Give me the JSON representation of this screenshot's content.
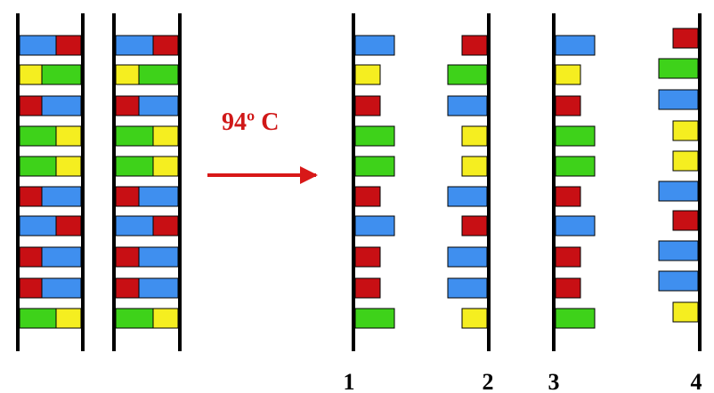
{
  "annotation": "94º C",
  "strands": [
    "1",
    "2",
    "3",
    "4"
  ]
}
